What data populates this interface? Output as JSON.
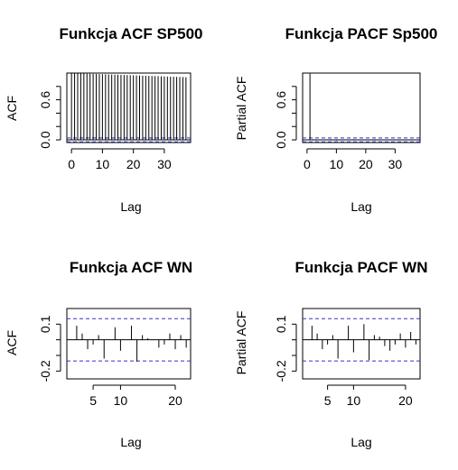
{
  "chart_data": [
    {
      "type": "bar",
      "title": "Funkcja ACF SP500",
      "xlabel": "Lag",
      "ylabel": "ACF",
      "xlim": [
        -1.5,
        38.5
      ],
      "ylim": [
        -0.04,
        1.0
      ],
      "xticks": [
        0,
        10,
        20,
        30
      ],
      "xtick_labels": [
        "0",
        "10",
        "20",
        "30"
      ],
      "yticks": [
        0.0,
        0.6
      ],
      "ytick_labels": [
        "0.0",
        "0.6"
      ],
      "yticks_unlabeled": [
        0.2,
        0.4,
        0.8
      ],
      "zero_line": true,
      "ci_bounds": [
        0.03,
        -0.03
      ],
      "x": [
        0,
        1,
        2,
        3,
        4,
        5,
        6,
        7,
        8,
        9,
        10,
        11,
        12,
        13,
        14,
        15,
        16,
        17,
        18,
        19,
        20,
        21,
        22,
        23,
        24,
        25,
        26,
        27,
        28,
        29,
        30,
        31,
        32,
        33,
        34,
        35,
        36,
        37
      ],
      "values": [
        1.0,
        0.998,
        0.996,
        0.995,
        0.993,
        0.991,
        0.99,
        0.988,
        0.986,
        0.985,
        0.983,
        0.981,
        0.98,
        0.978,
        0.976,
        0.975,
        0.973,
        0.971,
        0.97,
        0.968,
        0.966,
        0.965,
        0.963,
        0.961,
        0.96,
        0.958,
        0.956,
        0.955,
        0.953,
        0.951,
        0.95,
        0.948,
        0.946,
        0.945,
        0.943,
        0.941,
        0.94,
        0.938
      ]
    },
    {
      "type": "bar",
      "title": "Funkcja PACF Sp500",
      "xlabel": "Lag",
      "ylabel": "Partial ACF",
      "xlim": [
        -1.5,
        38.5
      ],
      "ylim": [
        -0.04,
        1.0
      ],
      "xticks": [
        0,
        10,
        20,
        30
      ],
      "xtick_labels": [
        "0",
        "10",
        "20",
        "30"
      ],
      "yticks": [
        0.0,
        0.6
      ],
      "ytick_labels": [
        "0.0",
        "0.6"
      ],
      "yticks_unlabeled": [
        0.2,
        0.4,
        0.8
      ],
      "zero_line": true,
      "ci_bounds": [
        0.03,
        -0.03
      ],
      "x": [
        1,
        2,
        3,
        4,
        5,
        6,
        7,
        8,
        9,
        10,
        11,
        12,
        13,
        14,
        15,
        16,
        17,
        18,
        19,
        20,
        21,
        22,
        23,
        24,
        25,
        26,
        27,
        28,
        29,
        30,
        31,
        32,
        33,
        34,
        35,
        36,
        37
      ],
      "values": [
        0.99,
        0.01,
        -0.01,
        0.0,
        0.005,
        -0.005,
        0.0,
        0.01,
        0.0,
        -0.01,
        0.0,
        0.005,
        0.0,
        -0.005,
        0.0,
        0.01,
        0.0,
        0.0,
        -0.005,
        0.0,
        0.005,
        0.0,
        -0.01,
        0.0,
        0.0,
        0.005,
        0.0,
        -0.005,
        0.0,
        0.0,
        0.005,
        0.0,
        0.0,
        -0.005,
        0.0,
        0.0,
        0.0
      ]
    },
    {
      "type": "bar",
      "title": "Funkcja ACF WN",
      "xlabel": "Lag",
      "ylabel": "ACF",
      "xlim": [
        0.2,
        22.8
      ],
      "ylim": [
        -0.25,
        0.2
      ],
      "xticks": [
        5,
        10,
        20
      ],
      "xtick_labels": [
        "5",
        "10",
        "20"
      ],
      "yticks": [
        0.1,
        -0.2
      ],
      "ytick_labels": [
        "0.1",
        "-0.2"
      ],
      "yticks_unlabeled": [
        0.0,
        -0.1
      ],
      "zero_line": true,
      "ci_bounds": [
        0.135,
        -0.135
      ],
      "x": [
        1,
        2,
        3,
        4,
        5,
        6,
        7,
        8,
        9,
        10,
        11,
        12,
        13,
        14,
        15,
        16,
        17,
        18,
        19,
        20,
        21,
        22
      ],
      "values": [
        0.0,
        0.09,
        0.04,
        -0.06,
        -0.03,
        0.03,
        -0.12,
        0.0,
        0.08,
        -0.07,
        0.0,
        0.09,
        -0.14,
        0.03,
        0.01,
        0.0,
        -0.05,
        -0.03,
        0.04,
        -0.06,
        0.03,
        -0.05
      ]
    },
    {
      "type": "bar",
      "title": "Funkcja PACF WN",
      "xlabel": "Lag",
      "ylabel": "Partial ACF",
      "xlim": [
        0.2,
        22.8
      ],
      "ylim": [
        -0.25,
        0.2
      ],
      "xticks": [
        5,
        10,
        20
      ],
      "xtick_labels": [
        "5",
        "10",
        "20"
      ],
      "yticks": [
        0.1,
        -0.2
      ],
      "ytick_labels": [
        "0.1",
        "-0.2"
      ],
      "yticks_unlabeled": [
        0.0,
        -0.1
      ],
      "zero_line": true,
      "ci_bounds": [
        0.135,
        -0.135
      ],
      "x": [
        1,
        2,
        3,
        4,
        5,
        6,
        7,
        8,
        9,
        10,
        11,
        12,
        13,
        14,
        15,
        16,
        17,
        18,
        19,
        20,
        21,
        22
      ],
      "values": [
        0.0,
        0.09,
        0.04,
        -0.06,
        -0.03,
        0.03,
        -0.12,
        0.0,
        0.09,
        -0.08,
        0.0,
        0.1,
        -0.13,
        0.03,
        0.02,
        -0.04,
        -0.07,
        -0.03,
        0.04,
        -0.05,
        0.05,
        -0.03
      ]
    }
  ]
}
